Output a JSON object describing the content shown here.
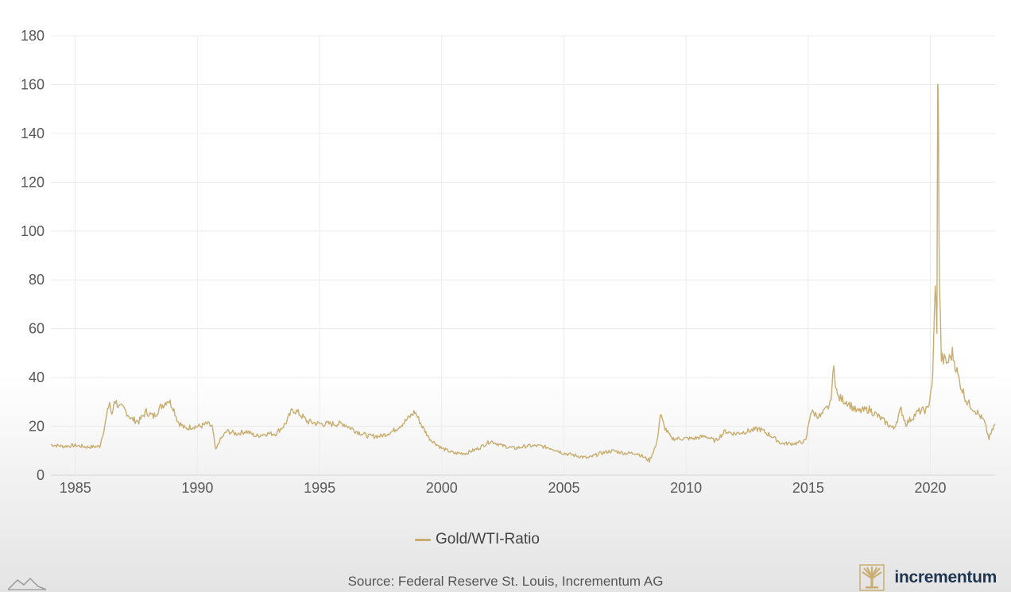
{
  "chart_data": {
    "type": "line",
    "x_ticks": [
      1985,
      1990,
      1995,
      2000,
      2005,
      2010,
      2015,
      2020
    ],
    "y_ticks": [
      0,
      20,
      40,
      60,
      80,
      100,
      120,
      140,
      160,
      180
    ],
    "xlim": [
      1984.0,
      2022.65
    ],
    "ylim": [
      0,
      180
    ],
    "grid": true,
    "legend_position": "bottom-center",
    "series": [
      {
        "name": "Gold/WTI-Ratio",
        "color": "#c8ad6f",
        "points": [
          [
            1984.0,
            12.5
          ],
          [
            1984.5,
            11.8
          ],
          [
            1985.0,
            12.2
          ],
          [
            1985.5,
            11.5
          ],
          [
            1986.0,
            11.8
          ],
          [
            1986.2,
            20
          ],
          [
            1986.4,
            30
          ],
          [
            1986.5,
            24
          ],
          [
            1986.6,
            31
          ],
          [
            1986.8,
            28
          ],
          [
            1987.0,
            27
          ],
          [
            1987.3,
            23
          ],
          [
            1987.6,
            22
          ],
          [
            1987.9,
            26
          ],
          [
            1988.2,
            24
          ],
          [
            1988.5,
            28
          ],
          [
            1988.8,
            31
          ],
          [
            1989.0,
            28
          ],
          [
            1989.2,
            22
          ],
          [
            1989.5,
            19
          ],
          [
            1989.8,
            20
          ],
          [
            1990.1,
            20
          ],
          [
            1990.4,
            21
          ],
          [
            1990.6,
            20
          ],
          [
            1990.75,
            10
          ],
          [
            1990.9,
            14
          ],
          [
            1991.2,
            18
          ],
          [
            1991.6,
            17
          ],
          [
            1992.0,
            18
          ],
          [
            1992.4,
            16
          ],
          [
            1992.8,
            17
          ],
          [
            1993.2,
            17
          ],
          [
            1993.6,
            21
          ],
          [
            1993.9,
            27
          ],
          [
            1994.2,
            25
          ],
          [
            1994.5,
            22
          ],
          [
            1995.0,
            21
          ],
          [
            1995.5,
            21
          ],
          [
            1996.0,
            21
          ],
          [
            1996.5,
            18
          ],
          [
            1997.0,
            16
          ],
          [
            1997.5,
            16
          ],
          [
            1998.0,
            18
          ],
          [
            1998.5,
            22
          ],
          [
            1998.9,
            26
          ],
          [
            1999.2,
            20
          ],
          [
            1999.5,
            15
          ],
          [
            2000.0,
            11
          ],
          [
            2000.5,
            9
          ],
          [
            2001.0,
            9
          ],
          [
            2001.5,
            11
          ],
          [
            2002.0,
            14
          ],
          [
            2002.5,
            12
          ],
          [
            2003.0,
            11
          ],
          [
            2003.5,
            12
          ],
          [
            2004.0,
            12
          ],
          [
            2004.5,
            11
          ],
          [
            2005.0,
            9
          ],
          [
            2005.5,
            8
          ],
          [
            2006.0,
            7
          ],
          [
            2006.5,
            9
          ],
          [
            2007.0,
            10
          ],
          [
            2007.5,
            9
          ],
          [
            2008.0,
            9
          ],
          [
            2008.5,
            6
          ],
          [
            2008.8,
            13
          ],
          [
            2008.95,
            25
          ],
          [
            2009.1,
            20
          ],
          [
            2009.4,
            15
          ],
          [
            2009.8,
            15
          ],
          [
            2010.3,
            15
          ],
          [
            2010.8,
            16
          ],
          [
            2011.2,
            14
          ],
          [
            2011.6,
            18
          ],
          [
            2012.0,
            17
          ],
          [
            2012.5,
            18
          ],
          [
            2013.0,
            19
          ],
          [
            2013.5,
            16
          ],
          [
            2013.9,
            13
          ],
          [
            2014.5,
            13
          ],
          [
            2014.9,
            14
          ],
          [
            2015.1,
            26
          ],
          [
            2015.5,
            24
          ],
          [
            2015.9,
            29
          ],
          [
            2016.05,
            44
          ],
          [
            2016.2,
            32
          ],
          [
            2016.6,
            30
          ],
          [
            2017.0,
            26
          ],
          [
            2017.5,
            27
          ],
          [
            2018.0,
            23
          ],
          [
            2018.5,
            19
          ],
          [
            2018.8,
            27
          ],
          [
            2019.0,
            21
          ],
          [
            2019.5,
            26
          ],
          [
            2019.9,
            27
          ],
          [
            2020.1,
            40
          ],
          [
            2020.2,
            80
          ],
          [
            2020.27,
            57
          ],
          [
            2020.3,
            168
          ],
          [
            2020.33,
            140
          ],
          [
            2020.37,
            80
          ],
          [
            2020.45,
            48
          ],
          [
            2020.7,
            46
          ],
          [
            2020.9,
            50
          ],
          [
            2021.2,
            38
          ],
          [
            2021.5,
            30
          ],
          [
            2021.9,
            26
          ],
          [
            2022.2,
            22
          ],
          [
            2022.4,
            15
          ],
          [
            2022.65,
            21
          ]
        ]
      }
    ]
  },
  "legend": {
    "label": "Gold/WTI-Ratio"
  },
  "footer": {
    "source": "Source: Federal Reserve St. Louis, Incrementum AG",
    "brand": "incrementum",
    "brand_color": "#1f3550",
    "logo_color": "#c8ad6f"
  }
}
